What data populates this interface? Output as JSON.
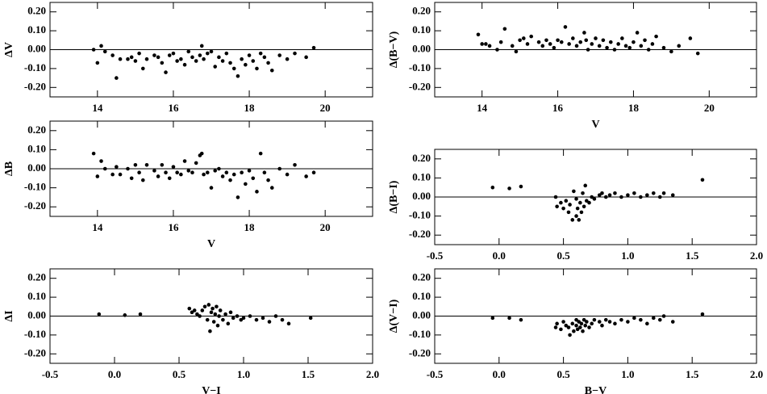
{
  "chart_data": [
    {
      "type": "scatter",
      "y_label": "ΔV",
      "color": "#000000",
      "x": [
        13.9,
        14.0,
        14.1,
        14.2,
        14.4,
        14.5,
        14.6,
        14.8,
        14.9,
        15.0,
        15.1,
        15.2,
        15.3,
        15.5,
        15.6,
        15.7,
        15.8,
        15.9,
        16.0,
        16.1,
        16.2,
        16.3,
        16.4,
        16.5,
        16.6,
        16.7,
        16.75,
        16.8,
        16.9,
        17.0,
        17.1,
        17.2,
        17.3,
        17.4,
        17.5,
        17.6,
        17.7,
        17.8,
        17.9,
        18.0,
        18.1,
        18.2,
        18.3,
        18.4,
        18.5,
        18.6,
        18.8,
        19.0,
        19.2,
        19.5,
        19.7
      ],
      "values": [
        0.0,
        -0.07,
        0.02,
        -0.01,
        -0.03,
        -0.15,
        -0.05,
        -0.05,
        -0.04,
        -0.06,
        -0.02,
        -0.1,
        -0.05,
        -0.03,
        -0.04,
        -0.07,
        -0.12,
        -0.03,
        -0.02,
        -0.06,
        -0.05,
        -0.08,
        -0.01,
        -0.04,
        -0.06,
        -0.03,
        0.02,
        -0.05,
        -0.02,
        -0.01,
        -0.09,
        -0.04,
        -0.06,
        -0.02,
        -0.07,
        -0.1,
        -0.14,
        -0.05,
        -0.08,
        -0.03,
        -0.06,
        -0.1,
        -0.02,
        -0.04,
        -0.07,
        -0.11,
        -0.03,
        -0.05,
        -0.02,
        -0.04,
        0.01
      ],
      "xlim": [
        12.75,
        21.25
      ],
      "xticks": [
        14,
        16,
        18,
        20
      ],
      "ylim": [
        -0.25,
        0.25
      ],
      "yticks": [
        {
          "value": 0.2,
          "label": "0.20"
        },
        {
          "value": 0.1,
          "label": "0.10"
        },
        {
          "value": 0,
          "label": "0.00"
        },
        {
          "value": -0.1,
          "label": "-0.10"
        },
        {
          "value": -0.2,
          "label": "-0.20"
        }
      ]
    },
    {
      "type": "scatter",
      "x_label": "V",
      "y_label": "Δ(B−V)",
      "color": "#000000",
      "x": [
        13.9,
        14.0,
        14.1,
        14.2,
        14.4,
        14.5,
        14.6,
        14.8,
        14.9,
        15.0,
        15.1,
        15.2,
        15.3,
        15.5,
        15.6,
        15.7,
        15.8,
        15.9,
        16.0,
        16.1,
        16.2,
        16.3,
        16.4,
        16.5,
        16.6,
        16.7,
        16.75,
        16.8,
        16.9,
        17.0,
        17.1,
        17.2,
        17.3,
        17.4,
        17.5,
        17.6,
        17.7,
        17.8,
        17.9,
        18.0,
        18.1,
        18.2,
        18.3,
        18.4,
        18.5,
        18.6,
        18.8,
        19.0,
        19.2,
        19.5,
        19.7
      ],
      "values": [
        0.08,
        0.03,
        0.03,
        0.02,
        0.0,
        0.04,
        0.11,
        0.02,
        -0.01,
        0.05,
        0.06,
        0.03,
        0.07,
        0.04,
        0.02,
        0.05,
        0.03,
        0.01,
        0.05,
        0.04,
        0.12,
        0.03,
        0.06,
        0.02,
        0.04,
        0.09,
        0.05,
        0.0,
        0.03,
        0.06,
        0.02,
        0.05,
        0.01,
        0.04,
        0.0,
        0.03,
        0.06,
        0.02,
        0.01,
        0.04,
        0.09,
        0.02,
        0.05,
        0.0,
        0.03,
        0.07,
        0.01,
        -0.01,
        0.02,
        0.06,
        -0.02
      ],
      "xlim": [
        12.75,
        21.25
      ],
      "xticks": [
        14,
        16,
        18,
        20
      ],
      "ylim": [
        -0.25,
        0.25
      ],
      "yticks": [
        {
          "value": 0.2,
          "label": "0.20"
        },
        {
          "value": 0.1,
          "label": "0.10"
        },
        {
          "value": 0,
          "label": "0.00"
        },
        {
          "value": -0.1,
          "label": "-0.10"
        },
        {
          "value": -0.2,
          "label": "-0.20"
        }
      ]
    },
    {
      "type": "scatter",
      "x_label": "V",
      "y_label": "ΔB",
      "color": "#000000",
      "x": [
        13.9,
        14.0,
        14.1,
        14.2,
        14.4,
        14.5,
        14.6,
        14.8,
        14.9,
        15.0,
        15.1,
        15.2,
        15.3,
        15.5,
        15.6,
        15.7,
        15.8,
        15.9,
        16.0,
        16.1,
        16.2,
        16.3,
        16.4,
        16.5,
        16.6,
        16.7,
        16.75,
        16.8,
        16.9,
        17.0,
        17.1,
        17.2,
        17.3,
        17.4,
        17.5,
        17.6,
        17.7,
        17.8,
        17.9,
        18.0,
        18.1,
        18.2,
        18.3,
        18.4,
        18.5,
        18.6,
        18.8,
        19.0,
        19.2,
        19.5,
        19.7
      ],
      "values": [
        0.08,
        -0.04,
        0.04,
        0.0,
        -0.03,
        0.01,
        -0.03,
        0.0,
        -0.05,
        0.02,
        -0.02,
        -0.06,
        0.02,
        -0.01,
        -0.04,
        0.02,
        -0.02,
        -0.05,
        0.01,
        -0.02,
        -0.03,
        0.04,
        -0.01,
        -0.02,
        0.03,
        0.07,
        0.08,
        -0.03,
        -0.02,
        -0.1,
        -0.01,
        0.0,
        -0.04,
        -0.02,
        -0.06,
        -0.03,
        -0.15,
        -0.02,
        -0.08,
        -0.01,
        -0.05,
        -0.12,
        0.08,
        -0.02,
        -0.06,
        -0.1,
        0.0,
        -0.03,
        0.02,
        -0.04,
        -0.02
      ],
      "xlim": [
        12.75,
        21.25
      ],
      "xticks": [
        14,
        16,
        18,
        20
      ],
      "ylim": [
        -0.25,
        0.25
      ],
      "yticks": [
        {
          "value": 0.2,
          "label": "0.20"
        },
        {
          "value": 0.1,
          "label": "0.10"
        },
        {
          "value": 0,
          "label": "0.00"
        },
        {
          "value": -0.1,
          "label": "-0.10"
        },
        {
          "value": -0.2,
          "label": "-0.20"
        }
      ]
    },
    {
      "type": "scatter",
      "y_label": "Δ(B−I)",
      "color": "#000000",
      "x": [
        -0.05,
        0.08,
        0.17,
        0.44,
        0.45,
        0.48,
        0.5,
        0.52,
        0.54,
        0.55,
        0.57,
        0.58,
        0.6,
        0.6,
        0.61,
        0.62,
        0.63,
        0.64,
        0.65,
        0.66,
        0.67,
        0.68,
        0.7,
        0.72,
        0.74,
        0.78,
        0.8,
        0.83,
        0.86,
        0.9,
        0.95,
        1.0,
        1.05,
        1.1,
        1.15,
        1.2,
        1.25,
        1.28,
        1.35,
        1.58
      ],
      "values": [
        0.05,
        0.045,
        0.055,
        0.0,
        -0.05,
        -0.03,
        -0.06,
        -0.02,
        -0.08,
        -0.04,
        -0.12,
        0.03,
        -0.1,
        -0.01,
        -0.06,
        -0.12,
        -0.03,
        -0.08,
        0.02,
        -0.05,
        0.06,
        -0.02,
        -0.03,
        0.0,
        -0.01,
        0.01,
        0.02,
        0.0,
        0.01,
        0.02,
        0.0,
        0.01,
        0.02,
        0.0,
        0.01,
        0.02,
        0.0,
        0.02,
        0.01,
        0.09
      ],
      "xlim": [
        -0.5,
        2.0
      ],
      "xticks": [
        -0.5,
        {
          "value": 0,
          "label": "0.0"
        },
        0.5,
        {
          "value": 1,
          "label": "1.0"
        },
        1.5,
        {
          "value": 2,
          "label": "2.0"
        }
      ],
      "ylim": [
        -0.25,
        0.25
      ],
      "yticks": [
        {
          "value": 0.2,
          "label": "0.20"
        },
        {
          "value": 0.1,
          "label": "0.10"
        },
        {
          "value": 0,
          "label": "0.00"
        },
        {
          "value": -0.1,
          "label": "-0.10"
        },
        {
          "value": -0.2,
          "label": "-0.20"
        }
      ]
    },
    {
      "type": "scatter",
      "x_label": "V−I",
      "y_label": "ΔI",
      "color": "#000000",
      "x": [
        -0.12,
        0.08,
        0.2,
        0.58,
        0.6,
        0.62,
        0.64,
        0.66,
        0.68,
        0.7,
        0.72,
        0.73,
        0.74,
        0.75,
        0.76,
        0.77,
        0.78,
        0.79,
        0.8,
        0.81,
        0.82,
        0.84,
        0.86,
        0.88,
        0.9,
        0.92,
        0.95,
        0.98,
        1.0,
        1.05,
        1.1,
        1.15,
        1.2,
        1.25,
        1.3,
        1.35,
        1.52
      ],
      "values": [
        0.01,
        0.005,
        0.01,
        0.04,
        0.02,
        0.03,
        0.01,
        0.0,
        0.03,
        0.05,
        -0.02,
        0.06,
        -0.08,
        0.02,
        0.04,
        -0.03,
        0.01,
        0.05,
        -0.05,
        0.0,
        0.03,
        -0.02,
        0.01,
        -0.04,
        0.02,
        -0.01,
        0.0,
        -0.02,
        -0.01,
        0.0,
        -0.02,
        -0.01,
        -0.03,
        0.0,
        -0.02,
        -0.04,
        -0.01
      ],
      "xlim": [
        -0.5,
        2.0
      ],
      "xticks": [
        -0.5,
        {
          "value": 0,
          "label": "0.0"
        },
        0.5,
        {
          "value": 1,
          "label": "1.0"
        },
        1.5,
        {
          "value": 2,
          "label": "2.0"
        }
      ],
      "ylim": [
        -0.25,
        0.25
      ],
      "yticks": [
        {
          "value": 0.2,
          "label": "0.20"
        },
        {
          "value": 0.1,
          "label": "0.10"
        },
        {
          "value": 0,
          "label": "0.00"
        },
        {
          "value": -0.1,
          "label": "-0.10"
        },
        {
          "value": -0.2,
          "label": "-0.20"
        }
      ]
    },
    {
      "type": "scatter",
      "x_label": "B−V",
      "y_label": "Δ(V−I)",
      "color": "#000000",
      "x": [
        -0.05,
        0.08,
        0.17,
        0.44,
        0.45,
        0.48,
        0.5,
        0.52,
        0.54,
        0.55,
        0.57,
        0.58,
        0.6,
        0.6,
        0.61,
        0.62,
        0.63,
        0.64,
        0.65,
        0.66,
        0.67,
        0.68,
        0.7,
        0.72,
        0.74,
        0.78,
        0.8,
        0.83,
        0.86,
        0.9,
        0.95,
        1.0,
        1.05,
        1.1,
        1.15,
        1.2,
        1.25,
        1.28,
        1.35,
        1.58
      ],
      "values": [
        -0.01,
        -0.01,
        -0.02,
        -0.06,
        -0.04,
        -0.07,
        -0.03,
        -0.05,
        -0.06,
        -0.1,
        -0.04,
        -0.08,
        -0.02,
        -0.05,
        -0.07,
        -0.03,
        -0.06,
        -0.04,
        -0.08,
        -0.02,
        -0.05,
        -0.03,
        -0.06,
        -0.04,
        -0.02,
        -0.03,
        -0.05,
        -0.02,
        -0.03,
        -0.04,
        -0.02,
        -0.03,
        -0.01,
        -0.02,
        -0.04,
        -0.01,
        -0.02,
        0.0,
        -0.03,
        0.01
      ],
      "xlim": [
        -0.5,
        2.0
      ],
      "xticks": [
        -0.5,
        {
          "value": 0,
          "label": "0.0"
        },
        0.5,
        {
          "value": 1,
          "label": "1.0"
        },
        1.5,
        {
          "value": 2,
          "label": "2.0"
        }
      ],
      "ylim": [
        -0.25,
        0.25
      ],
      "yticks": [
        {
          "value": 0.2,
          "label": "0.20"
        },
        {
          "value": 0.1,
          "label": "0.10"
        },
        {
          "value": 0,
          "label": "0.00"
        },
        {
          "value": -0.1,
          "label": "-0.10"
        },
        {
          "value": -0.2,
          "label": "-0.20"
        }
      ]
    }
  ]
}
